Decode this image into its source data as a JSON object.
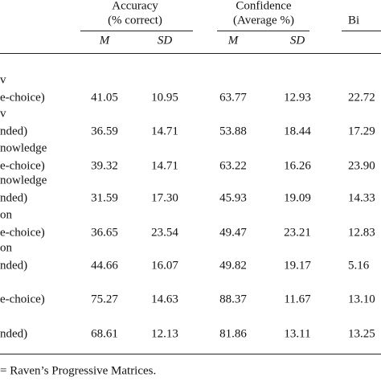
{
  "header": {
    "groups": [
      {
        "line1": "Accuracy",
        "line2": "(% correct)"
      },
      {
        "line1": "Confidence",
        "line2": "(Average %)"
      },
      {
        "line1": "",
        "line2": "Bi"
      }
    ],
    "subheaders": [
      "M",
      "SD",
      "M",
      "SD"
    ]
  },
  "table": {
    "rows": [
      {
        "label": [
          "v",
          "e-choice)"
        ],
        "values": [
          "41.05",
          "10.95",
          "63.77",
          "12.93",
          "22.72"
        ]
      },
      {
        "label": [
          "v",
          "nded)"
        ],
        "values": [
          "36.59",
          "14.71",
          "53.88",
          "18.44",
          "17.29"
        ]
      },
      {
        "label": [
          "nowledge",
          "e-choice)"
        ],
        "values": [
          "39.32",
          "14.71",
          "63.22",
          "16.26",
          "23.90"
        ]
      },
      {
        "label": [
          "nowledge",
          "nded)"
        ],
        "values": [
          "31.59",
          "17.30",
          "45.93",
          "19.09",
          "14.33"
        ]
      },
      {
        "label": [
          "on",
          "e-choice)"
        ],
        "values": [
          "36.65",
          "23.54",
          "49.47",
          "23.21",
          "12.83"
        ]
      },
      {
        "label": [
          "on",
          "nded)"
        ],
        "values": [
          "44.66",
          "16.07",
          "49.82",
          "19.17",
          "5.16"
        ]
      },
      {
        "label": [
          "e-choice)"
        ],
        "values": [
          "75.27",
          "14.63",
          "88.37",
          "11.67",
          "13.10"
        ]
      },
      {
        "label": [
          "nded)"
        ],
        "values": [
          "68.61",
          "12.13",
          "81.86",
          "13.11",
          "13.25"
        ]
      }
    ]
  },
  "note": "= Raven’s Progressive Matrices."
}
